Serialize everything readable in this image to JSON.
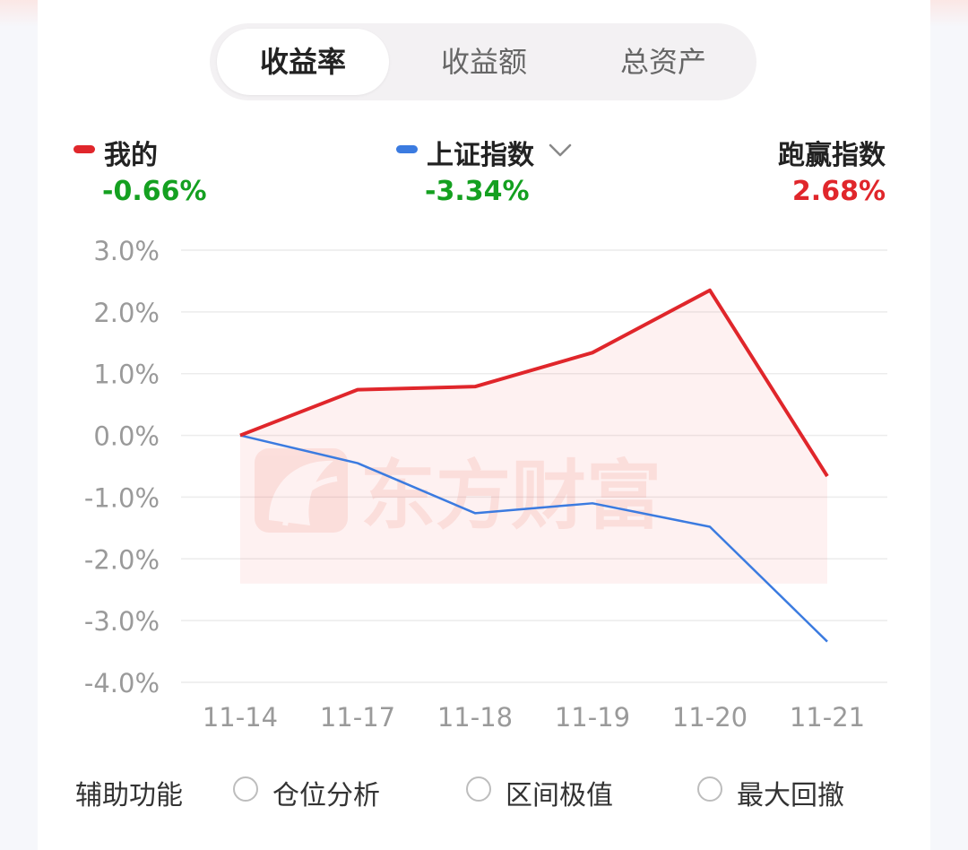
{
  "tabs": [
    {
      "label": "收益率",
      "active": true
    },
    {
      "label": "收益额",
      "active": false
    },
    {
      "label": "总资产",
      "active": false
    }
  ],
  "legend": {
    "mine": {
      "label": "我的",
      "value": "-0.66%",
      "color": "#e0262b",
      "value_color": "#14a020"
    },
    "index": {
      "label": "上证指数",
      "value": "-3.34%",
      "color": "#3b7be0",
      "value_color": "#14a020"
    },
    "beat": {
      "label": "跑赢指数",
      "value": "2.68%",
      "value_color": "#e0262b"
    }
  },
  "watermark": "东方财富",
  "chart_data": {
    "type": "line",
    "categories": [
      "11-14",
      "11-17",
      "11-18",
      "11-19",
      "11-20",
      "11-21"
    ],
    "y_tick_labels": [
      "3.0%",
      "2.0%",
      "1.0%",
      "0.0%",
      "-1.0%",
      "-2.0%",
      "-3.0%",
      "-4.0%"
    ],
    "ylim": [
      -4.0,
      3.0
    ],
    "grid": true,
    "series": [
      {
        "name": "我的",
        "color": "#e0262b",
        "values": [
          0.0,
          0.74,
          0.79,
          1.34,
          2.35,
          -0.66
        ],
        "area_fill": true
      },
      {
        "name": "上证指数",
        "color": "#3b7be0",
        "values": [
          0.0,
          -0.45,
          -1.26,
          -1.1,
          -1.48,
          -3.34
        ]
      }
    ]
  },
  "bottom": {
    "label": "辅助功能",
    "options": [
      "仓位分析",
      "区间极值",
      "最大回撤"
    ]
  }
}
